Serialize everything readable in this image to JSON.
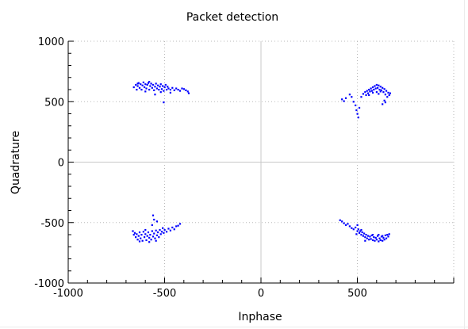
{
  "chart_data": {
    "type": "scatter",
    "title": "Packet detection",
    "xlabel": "Inphase",
    "ylabel": "Quadrature",
    "xlim": [
      -1000,
      1000
    ],
    "ylim": [
      -1000,
      1000
    ],
    "x_ticks": [
      -1000,
      -500,
      0,
      500
    ],
    "y_ticks": [
      -1000,
      -500,
      0,
      500,
      1000
    ],
    "x_minor_step": 100,
    "y_minor_step": 100,
    "grid": true,
    "grid_style": "dotted",
    "zero_lines": true,
    "marker_color": "#0000ff",
    "series": [
      {
        "values": [
          [
            -660,
            620
          ],
          [
            -650,
            640
          ],
          [
            -645,
            600
          ],
          [
            -640,
            630
          ],
          [
            -635,
            655
          ],
          [
            -630,
            615
          ],
          [
            -625,
            645
          ],
          [
            -620,
            600
          ],
          [
            -615,
            635
          ],
          [
            -610,
            660
          ],
          [
            -605,
            620
          ],
          [
            -600,
            645
          ],
          [
            -595,
            610
          ],
          [
            -590,
            640
          ],
          [
            -585,
            655
          ],
          [
            -580,
            600
          ],
          [
            -575,
            630
          ],
          [
            -570,
            650
          ],
          [
            -565,
            615
          ],
          [
            -560,
            640
          ],
          [
            -555,
            595
          ],
          [
            -550,
            625
          ],
          [
            -545,
            650
          ],
          [
            -540,
            610
          ],
          [
            -535,
            635
          ],
          [
            -530,
            600
          ],
          [
            -525,
            625
          ],
          [
            -520,
            645
          ],
          [
            -515,
            605
          ],
          [
            -510,
            630
          ],
          [
            -505,
            590
          ],
          [
            -500,
            620
          ],
          [
            -495,
            640
          ],
          [
            -490,
            600
          ],
          [
            -485,
            625
          ],
          [
            -480,
            610
          ],
          [
            -470,
            600
          ],
          [
            -460,
            615
          ],
          [
            -450,
            595
          ],
          [
            -440,
            610
          ],
          [
            -430,
            600
          ],
          [
            -420,
            590
          ],
          [
            -410,
            610
          ],
          [
            -400,
            605
          ],
          [
            -390,
            595
          ],
          [
            -380,
            585
          ],
          [
            -375,
            570
          ],
          [
            -505,
            495
          ],
          [
            -550,
            560
          ],
          [
            -600,
            585
          ],
          [
            -640,
            650
          ],
          [
            -580,
            665
          ],
          [
            -520,
            580
          ],
          [
            -470,
            575
          ],
          [
            420,
            520
          ],
          [
            430,
            505
          ],
          [
            440,
            530
          ],
          [
            460,
            560
          ],
          [
            470,
            540
          ],
          [
            480,
            500
          ],
          [
            490,
            470
          ],
          [
            495,
            430
          ],
          [
            500,
            400
          ],
          [
            505,
            370
          ],
          [
            510,
            450
          ],
          [
            520,
            540
          ],
          [
            530,
            565
          ],
          [
            540,
            580
          ],
          [
            545,
            555
          ],
          [
            550,
            590
          ],
          [
            555,
            570
          ],
          [
            560,
            600
          ],
          [
            565,
            585
          ],
          [
            570,
            610
          ],
          [
            575,
            590
          ],
          [
            580,
            620
          ],
          [
            585,
            600
          ],
          [
            590,
            630
          ],
          [
            595,
            610
          ],
          [
            600,
            640
          ],
          [
            605,
            615
          ],
          [
            610,
            635
          ],
          [
            615,
            600
          ],
          [
            620,
            625
          ],
          [
            625,
            595
          ],
          [
            630,
            615
          ],
          [
            635,
            580
          ],
          [
            640,
            605
          ],
          [
            645,
            560
          ],
          [
            650,
            590
          ],
          [
            655,
            540
          ],
          [
            660,
            575
          ],
          [
            665,
            555
          ],
          [
            640,
            510
          ],
          [
            630,
            480
          ],
          [
            645,
            495
          ],
          [
            600,
            580
          ],
          [
            580,
            575
          ],
          [
            560,
            555
          ],
          [
            610,
            565
          ],
          [
            620,
            585
          ],
          [
            670,
            570
          ],
          [
            -665,
            -570
          ],
          [
            -660,
            -600
          ],
          [
            -655,
            -585
          ],
          [
            -650,
            -620
          ],
          [
            -645,
            -595
          ],
          [
            -640,
            -640
          ],
          [
            -635,
            -610
          ],
          [
            -630,
            -580
          ],
          [
            -625,
            -630
          ],
          [
            -620,
            -600
          ],
          [
            -615,
            -650
          ],
          [
            -610,
            -575
          ],
          [
            -605,
            -620
          ],
          [
            -600,
            -595
          ],
          [
            -595,
            -645
          ],
          [
            -590,
            -610
          ],
          [
            -585,
            -580
          ],
          [
            -580,
            -625
          ],
          [
            -575,
            -600
          ],
          [
            -570,
            -640
          ],
          [
            -565,
            -570
          ],
          [
            -560,
            -615
          ],
          [
            -555,
            -590
          ],
          [
            -550,
            -630
          ],
          [
            -545,
            -565
          ],
          [
            -540,
            -605
          ],
          [
            -535,
            -580
          ],
          [
            -530,
            -620
          ],
          [
            -525,
            -560
          ],
          [
            -520,
            -595
          ],
          [
            -515,
            -575
          ],
          [
            -510,
            -545
          ],
          [
            -505,
            -585
          ],
          [
            -500,
            -560
          ],
          [
            -490,
            -575
          ],
          [
            -480,
            -550
          ],
          [
            -470,
            -565
          ],
          [
            -460,
            -540
          ],
          [
            -450,
            -555
          ],
          [
            -440,
            -530
          ],
          [
            -430,
            -525
          ],
          [
            -420,
            -510
          ],
          [
            -560,
            -440
          ],
          [
            -555,
            -475
          ],
          [
            -565,
            -520
          ],
          [
            -540,
            -490
          ],
          [
            -600,
            -560
          ],
          [
            -630,
            -655
          ],
          [
            -580,
            -660
          ],
          [
            -545,
            -650
          ],
          [
            410,
            -480
          ],
          [
            420,
            -490
          ],
          [
            430,
            -505
          ],
          [
            440,
            -520
          ],
          [
            450,
            -510
          ],
          [
            460,
            -530
          ],
          [
            470,
            -545
          ],
          [
            480,
            -555
          ],
          [
            490,
            -540
          ],
          [
            500,
            -570
          ],
          [
            505,
            -555
          ],
          [
            510,
            -585
          ],
          [
            515,
            -570
          ],
          [
            520,
            -600
          ],
          [
            525,
            -580
          ],
          [
            530,
            -610
          ],
          [
            535,
            -590
          ],
          [
            540,
            -620
          ],
          [
            545,
            -600
          ],
          [
            550,
            -630
          ],
          [
            555,
            -610
          ],
          [
            560,
            -640
          ],
          [
            565,
            -615
          ],
          [
            570,
            -635
          ],
          [
            575,
            -605
          ],
          [
            580,
            -645
          ],
          [
            585,
            -620
          ],
          [
            590,
            -650
          ],
          [
            595,
            -625
          ],
          [
            600,
            -640
          ],
          [
            605,
            -610
          ],
          [
            610,
            -655
          ],
          [
            615,
            -630
          ],
          [
            620,
            -645
          ],
          [
            625,
            -615
          ],
          [
            630,
            -650
          ],
          [
            635,
            -625
          ],
          [
            640,
            -640
          ],
          [
            645,
            -605
          ],
          [
            650,
            -630
          ],
          [
            655,
            -600
          ],
          [
            660,
            -615
          ],
          [
            665,
            -595
          ],
          [
            495,
            -595
          ],
          [
            500,
            -520
          ],
          [
            520,
            -560
          ],
          [
            540,
            -650
          ],
          [
            580,
            -600
          ],
          [
            610,
            -600
          ],
          [
            630,
            -610
          ]
        ]
      }
    ]
  }
}
